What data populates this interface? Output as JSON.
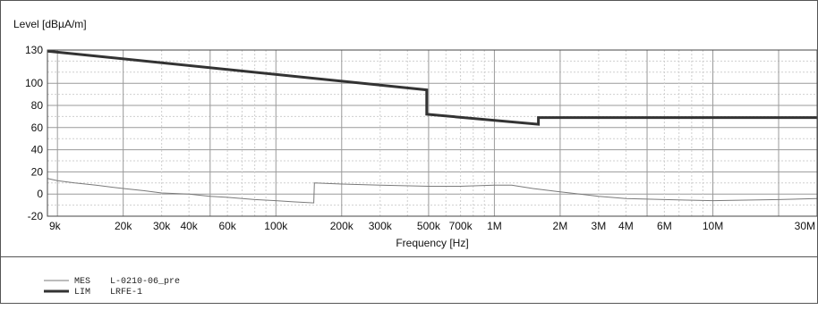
{
  "chart_data": {
    "type": "line",
    "ylabel": "Level [dBµA/m]",
    "xlabel": "Frequency [Hz]",
    "x_scale": "log",
    "xlim": [
      9000,
      30000000
    ],
    "ylim": [
      -20,
      130
    ],
    "grid": true,
    "y_ticks": [
      {
        "value": 130,
        "label": "130"
      },
      {
        "value": 100,
        "label": "100"
      },
      {
        "value": 80,
        "label": "80"
      },
      {
        "value": 60,
        "label": "60"
      },
      {
        "value": 40,
        "label": "40"
      },
      {
        "value": 20,
        "label": "20"
      },
      {
        "value": 0,
        "label": "0"
      },
      {
        "value": -20,
        "label": "-20"
      }
    ],
    "x_ticks": [
      {
        "value": 9000,
        "label": "9k"
      },
      {
        "value": 20000,
        "label": "20k"
      },
      {
        "value": 30000,
        "label": "30k"
      },
      {
        "value": 40000,
        "label": "40k"
      },
      {
        "value": 60000,
        "label": "60k"
      },
      {
        "value": 100000,
        "label": "100k"
      },
      {
        "value": 200000,
        "label": "200k"
      },
      {
        "value": 300000,
        "label": "300k"
      },
      {
        "value": 500000,
        "label": "500k"
      },
      {
        "value": 700000,
        "label": "700k"
      },
      {
        "value": 1000000,
        "label": "1M"
      },
      {
        "value": 2000000,
        "label": "2M"
      },
      {
        "value": 3000000,
        "label": "3M"
      },
      {
        "value": 4000000,
        "label": "4M"
      },
      {
        "value": 6000000,
        "label": "6M"
      },
      {
        "value": 10000000,
        "label": "10M"
      },
      {
        "value": 30000000,
        "label": "30M"
      }
    ],
    "series": [
      {
        "name": "MES",
        "description": "L-0210-06_pre",
        "color": "#7a7a7a",
        "x": [
          9000,
          10000,
          12000,
          15000,
          20000,
          25000,
          30000,
          40000,
          50000,
          60000,
          80000,
          100000,
          120000,
          149000,
          150000,
          200000,
          300000,
          500000,
          700000,
          1000000,
          1200000,
          1500000,
          2000000,
          3000000,
          4000000,
          6000000,
          10000000,
          20000000,
          30000000
        ],
        "y": [
          14,
          12,
          10,
          8,
          5,
          3,
          1,
          0,
          -2,
          -3,
          -5,
          -6,
          -7,
          -8,
          10,
          9,
          8,
          7,
          7,
          8,
          8,
          5,
          2,
          -2,
          -4,
          -5,
          -6,
          -5,
          -4
        ]
      },
      {
        "name": "LIM",
        "description": "LRFE-1",
        "color": "#333333",
        "x": [
          9000,
          490000,
          490000,
          1590000,
          1590000,
          30000000
        ],
        "y": [
          129,
          94,
          72,
          63,
          69,
          69
        ]
      }
    ],
    "legend": [
      {
        "name": "MES",
        "label": "L-0210-06_pre"
      },
      {
        "name": "LIM",
        "label": "LRFE-1"
      }
    ]
  }
}
